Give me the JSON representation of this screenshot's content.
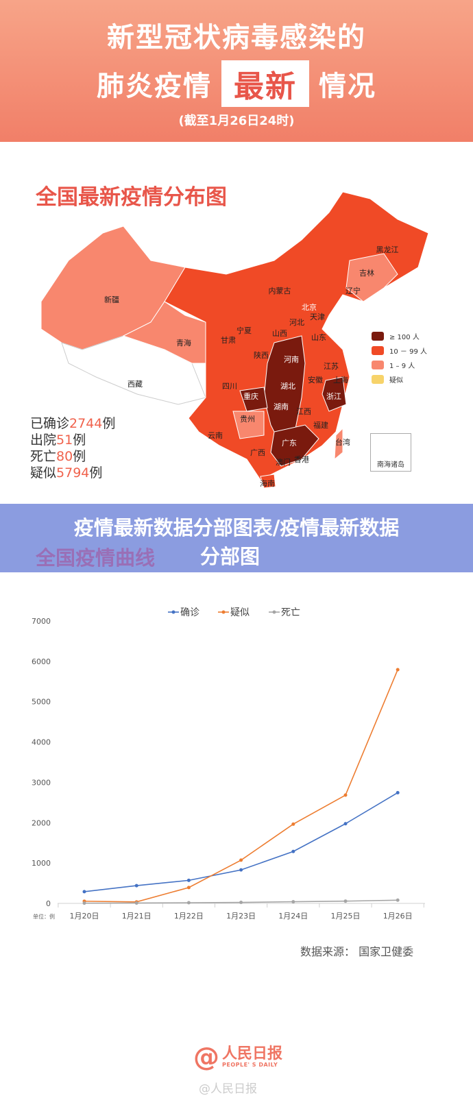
{
  "header": {
    "line1": "新型冠状病毒感染的",
    "line2_left": "肺炎疫情",
    "line2_box": "最新",
    "line2_right": "情况",
    "subtitle": "(截至1月26日24时)"
  },
  "map": {
    "title": "全国最新疫情分布图",
    "provinces": [
      {
        "name": "新疆",
        "level": "1-9"
      },
      {
        "name": "西藏",
        "level": "none"
      },
      {
        "name": "青海",
        "level": "1-9"
      },
      {
        "name": "甘肃",
        "level": "10-99"
      },
      {
        "name": "宁夏",
        "level": "10-99"
      },
      {
        "name": "内蒙古",
        "level": "10-99"
      },
      {
        "name": "黑龙江",
        "level": "10-99"
      },
      {
        "name": "吉林",
        "level": "1-9"
      },
      {
        "name": "辽宁",
        "level": "10-99"
      },
      {
        "name": "北京",
        "level": ">100"
      },
      {
        "name": "天津",
        "level": "10-99"
      },
      {
        "name": "河北",
        "level": "10-99"
      },
      {
        "name": "山西",
        "level": "10-99"
      },
      {
        "name": "山东",
        "level": "10-99"
      },
      {
        "name": "陕西",
        "level": "10-99"
      },
      {
        "name": "河南",
        "level": ">100"
      },
      {
        "name": "江苏",
        "level": "10-99"
      },
      {
        "name": "安徽",
        "level": "10-99"
      },
      {
        "name": "上海",
        "level": "10-99"
      },
      {
        "name": "湖北",
        "level": ">100"
      },
      {
        "name": "四川",
        "level": "10-99"
      },
      {
        "name": "重庆",
        "level": ">100"
      },
      {
        "name": "浙江",
        "level": ">100"
      },
      {
        "name": "湖南",
        "level": ">100"
      },
      {
        "name": "江西",
        "level": "10-99"
      },
      {
        "name": "贵州",
        "level": "1-9"
      },
      {
        "name": "福建",
        "level": "10-99"
      },
      {
        "name": "云南",
        "level": "10-99"
      },
      {
        "name": "广西",
        "level": "10-99"
      },
      {
        "name": "广东",
        "level": ">100"
      },
      {
        "name": "台湾",
        "level": "1-9"
      },
      {
        "name": "澳门",
        "level": "1-9"
      },
      {
        "name": "香港",
        "level": "1-9"
      },
      {
        "name": "海南",
        "level": "10-99"
      }
    ],
    "legend": [
      {
        "label": "≥ 100 人",
        "color": "#7a1a0e"
      },
      {
        "label": "10 － 99 人",
        "color": "#f04a26"
      },
      {
        "label": "1 – 9 人",
        "color": "#f8876e"
      },
      {
        "label": "疑似",
        "color": "#f7d36a"
      }
    ],
    "inset_label": "南海诸岛",
    "stats": [
      {
        "pre": "已确诊",
        "num": "2744",
        "post": "例"
      },
      {
        "pre": "出院",
        "num": "51",
        "post": "例"
      },
      {
        "pre": "死亡",
        "num": "80",
        "post": "例"
      },
      {
        "pre": "疑似",
        "num": "5794",
        "post": "例"
      }
    ]
  },
  "banner": {
    "overlay_title_line1": "疫情最新数据分部图表/疫情最新数据",
    "overlay_title_line2": "分部图",
    "section_title": "全国疫情曲线"
  },
  "chart_data": {
    "type": "line",
    "categories": [
      "1月20日",
      "1月21日",
      "1月22日",
      "1月23日",
      "1月24日",
      "1月25日",
      "1月26日"
    ],
    "series": [
      {
        "name": "确诊",
        "color": "#4472c4",
        "values": [
          291,
          440,
          571,
          830,
          1287,
          1975,
          2744
        ]
      },
      {
        "name": "疑似",
        "color": "#ed7d31",
        "values": [
          54,
          37,
          393,
          1072,
          1965,
          2684,
          5794
        ]
      },
      {
        "name": "死亡",
        "color": "#a5a5a5",
        "values": [
          6,
          9,
          17,
          25,
          41,
          56,
          80
        ]
      }
    ],
    "ylim": [
      0,
      7000
    ],
    "yticks": [
      0,
      1000,
      2000,
      3000,
      4000,
      5000,
      6000,
      7000
    ],
    "unit_label": "单位：例",
    "legend_position": "top",
    "grid": false
  },
  "source": "数据来源：  国家卫健委",
  "logo": {
    "cn": "人民日报",
    "en": "PEOPLE' S DAILY",
    "at": "@"
  },
  "watermark": "@人民日报"
}
